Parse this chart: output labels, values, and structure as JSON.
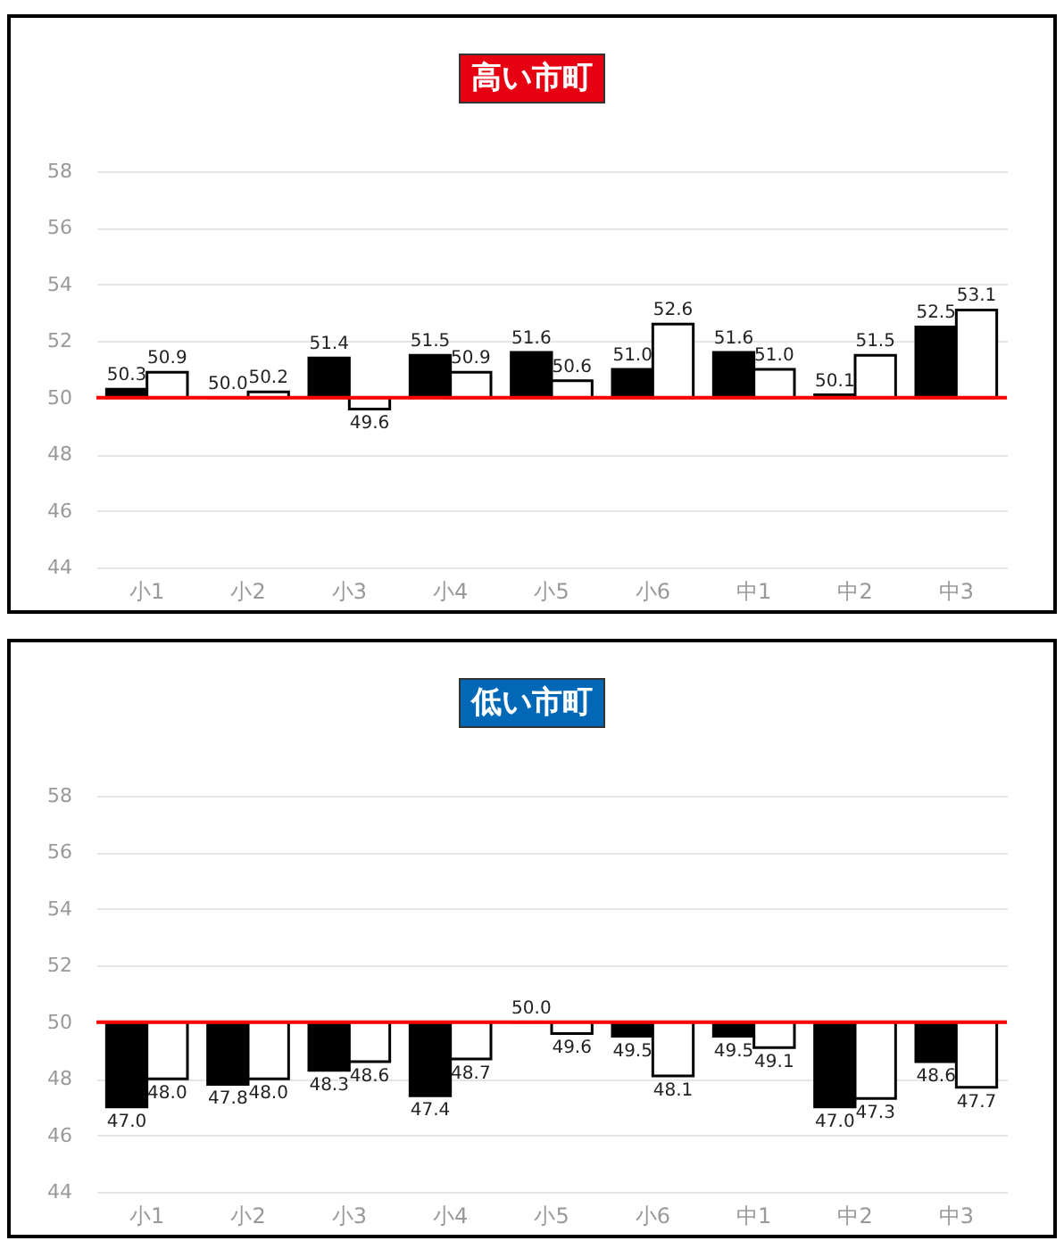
{
  "chart_data": [
    {
      "type": "bar",
      "title": "高い市町",
      "categories": [
        "小1",
        "小2",
        "小3",
        "小4",
        "小5",
        "小6",
        "中1",
        "中2",
        "中3"
      ],
      "series": [
        {
          "color": "#000000",
          "base": [
            50,
            50,
            50,
            50,
            50,
            50,
            50,
            50,
            50
          ],
          "values": [
            0.3,
            0.0,
            1.4,
            1.5,
            1.6,
            1.0,
            1.6,
            0.1,
            2.5
          ],
          "value_labels": [
            "50.3",
            "50.0",
            "51.4",
            "51.5",
            "51.6",
            "51.0",
            "51.6",
            "50.1",
            "52.5"
          ]
        },
        {
          "color": "#ffffff",
          "base": [
            50,
            50,
            50,
            50,
            50,
            50,
            50,
            50,
            50
          ],
          "values": [
            0.9,
            0.2,
            -0.4,
            0.9,
            0.6,
            2.6,
            1.0,
            1.5,
            3.1
          ],
          "value_labels": [
            "50.9",
            "50.2",
            "49.6",
            "50.9",
            "50.6",
            "52.6",
            "51.0",
            "51.5",
            "53.1"
          ]
        }
      ],
      "ylim": [
        44,
        58
      ],
      "yticks": [
        44,
        46,
        48,
        50,
        52,
        54,
        56,
        58
      ],
      "grid": "y",
      "legend": false,
      "ref_lines": [
        {
          "axis": "y",
          "value": 50,
          "color": "#ff0000"
        }
      ]
    },
    {
      "type": "bar",
      "title": "低い市町",
      "categories": [
        "小1",
        "小2",
        "小3",
        "小4",
        "小5",
        "小6",
        "中1",
        "中2",
        "中3"
      ],
      "series": [
        {
          "color": "#000000",
          "base": [
            50,
            50,
            50,
            50,
            50,
            50,
            50,
            50,
            50
          ],
          "values": [
            -3.0,
            -2.2,
            -1.7,
            -2.6,
            0.0,
            -0.5,
            -0.5,
            -3.0,
            -1.4
          ],
          "value_labels": [
            "47.0",
            "47.8",
            "48.3",
            "47.4",
            "50.0",
            "49.5",
            "49.5",
            "47.0",
            "48.6"
          ]
        },
        {
          "color": "#ffffff",
          "base": [
            50,
            50,
            50,
            50,
            50,
            50,
            50,
            50,
            50
          ],
          "values": [
            -2.0,
            -2.0,
            -1.4,
            -1.3,
            -0.4,
            -1.9,
            -0.9,
            -2.7,
            -2.3
          ],
          "value_labels": [
            "48.0",
            "48.0",
            "48.6",
            "48.7",
            "49.6",
            "48.1",
            "49.1",
            "47.3",
            "47.7"
          ]
        }
      ],
      "ylim": [
        44,
        58
      ],
      "yticks": [
        44,
        46,
        48,
        50,
        52,
        54,
        56,
        58
      ],
      "grid": "y",
      "legend": false,
      "ref_lines": [
        {
          "axis": "y",
          "value": 50,
          "color": "#ff0000"
        }
      ]
    }
  ]
}
